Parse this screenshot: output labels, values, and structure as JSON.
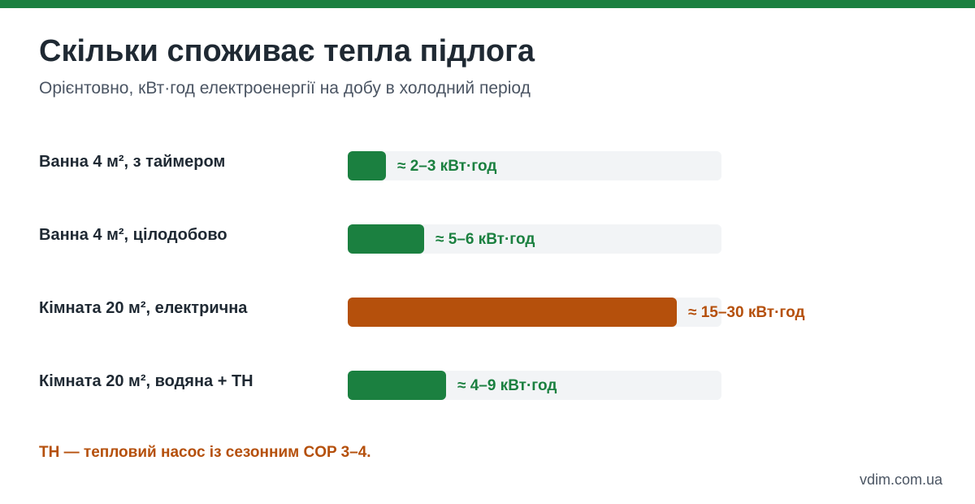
{
  "colors": {
    "accent": "#1b8040",
    "warning": "#b5500c",
    "track": "#f2f4f6",
    "text": "#1f2933",
    "muted": "#4b5563"
  },
  "title": "Скільки споживає тепла підлога",
  "subtitle": "Орієнтовно, кВт·год електроенергії на добу в холодний період",
  "chart_data": {
    "type": "bar",
    "orientation": "horizontal",
    "title": "Скільки споживає тепла підлога",
    "subtitle": "Орієнтовно, кВт·год електроенергії на добу в холодний період",
    "categories": [
      "Ванна 4 м², з таймером",
      "Ванна 4 м², цілодобово",
      "Кімната 20 м², електрична",
      "Кімната 20 м², водяна + ТН"
    ],
    "ranges": [
      [
        2,
        3
      ],
      [
        5,
        6
      ],
      [
        15,
        30
      ],
      [
        4,
        9
      ]
    ],
    "values": [
      3,
      6,
      26,
      7.75
    ],
    "value_labels": [
      "≈ 2–3 кВт·год",
      "≈ 5–6 кВт·год",
      "≈ 15–30 кВт·год",
      "≈ 4–9 кВт·год"
    ],
    "bar_colors": [
      "#1b8040",
      "#1b8040",
      "#b5500c",
      "#1b8040"
    ],
    "xlim": [
      0,
      29.5
    ],
    "grid": false,
    "legend": "none"
  },
  "footnote": "ТН — тепловий насос із сезонним COP 3–4.",
  "source": "vdim.com.ua"
}
